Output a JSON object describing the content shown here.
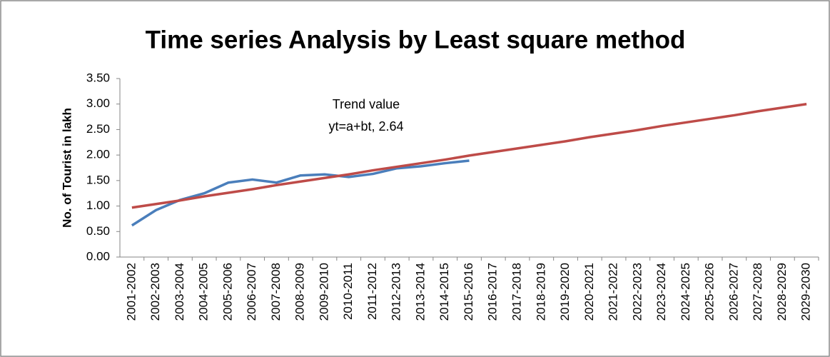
{
  "chart_data": {
    "type": "line",
    "title": "Time series Analysis by Least square method",
    "y_label": "No.  of Tourist in lakh",
    "annotation": [
      "Trend value",
      "yt=a+bt, 2.64"
    ],
    "categories": [
      "2001-2002",
      "2002-2003",
      "2003-2004",
      "2004-2005",
      "2005-2006",
      "2006-2007",
      "2007-2008",
      "2008-2009",
      "2009-2010",
      "2010-2011",
      "2011-2012",
      "2012-2013",
      "2013-2014",
      "2014-2015",
      "2015-2016",
      "2016-2017",
      "2017-2018",
      "2018-2019",
      "2019-2020",
      "2020-2021",
      "2021-2022",
      "2022-2023",
      "2023-2024",
      "2024-2025",
      "2025-2026",
      "2026-2027",
      "2027-2028",
      "2028-2029",
      "2029-2030"
    ],
    "series": [
      {
        "color": "#4a7ebb",
        "values": [
          0.62,
          0.92,
          1.12,
          1.25,
          1.46,
          1.52,
          1.46,
          1.6,
          1.62,
          1.57,
          1.63,
          1.74,
          1.78,
          1.84,
          1.89,
          null,
          null,
          null,
          null,
          null,
          null,
          null,
          null,
          null,
          null,
          null,
          null,
          null,
          null
        ]
      },
      {
        "color": "#be4b48",
        "values": [
          0.97,
          1.04,
          1.11,
          1.19,
          1.26,
          1.33,
          1.41,
          1.48,
          1.55,
          1.62,
          1.7,
          1.77,
          1.84,
          1.91,
          1.99,
          2.06,
          2.13,
          2.2,
          2.27,
          2.35,
          2.42,
          2.49,
          2.57,
          2.64,
          2.71,
          2.78,
          2.86,
          2.93,
          3.0
        ]
      }
    ],
    "ylim": [
      0,
      3.5
    ],
    "yticks": [
      {
        "value": 0,
        "label": "0.00"
      },
      {
        "value": 0.5,
        "label": "0.50"
      },
      {
        "value": 1,
        "label": "1.00"
      },
      {
        "value": 1.5,
        "label": "1.50"
      },
      {
        "value": 2,
        "label": "2.00"
      },
      {
        "value": 2.5,
        "label": "2.50"
      },
      {
        "value": 3,
        "label": "3.00"
      },
      {
        "value": 3.5,
        "label": "3.50"
      }
    ]
  }
}
